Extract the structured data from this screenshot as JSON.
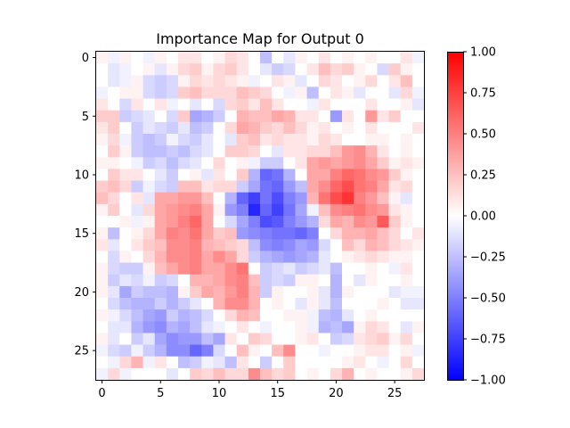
{
  "chart_data": {
    "type": "heatmap",
    "title": "Importance Map for Output 0",
    "xlabel": "",
    "ylabel": "",
    "grid": false,
    "colormap": "bwr",
    "color_min": "#0000ff",
    "color_mid": "#ffffff",
    "color_max": "#ff0000",
    "vmin": -1.0,
    "vmax": 1.0,
    "rows": 28,
    "cols": 28,
    "x_ticks": [
      0,
      5,
      10,
      15,
      20,
      25
    ],
    "y_ticks": [
      0,
      5,
      10,
      15,
      20,
      25
    ],
    "colorbar_ticks": [
      {
        "value": 1.0,
        "label": "1.00"
      },
      {
        "value": 0.75,
        "label": "0.75"
      },
      {
        "value": 0.5,
        "label": "0.50"
      },
      {
        "value": 0.25,
        "label": "0.25"
      },
      {
        "value": 0.0,
        "label": "0.00"
      },
      {
        "value": -0.25,
        "label": "−0.25"
      },
      {
        "value": -0.5,
        "label": "−0.50"
      },
      {
        "value": -0.75,
        "label": "−0.75"
      },
      {
        "value": -1.0,
        "label": "−1.00"
      }
    ],
    "values": [
      [
        0.05,
        -0.05,
        0.05,
        0.0,
        -0.05,
        0.05,
        0.0,
        0.1,
        0.1,
        0.0,
        0.05,
        0.15,
        0.1,
        0.0,
        -0.25,
        0.0,
        -0.1,
        0.05,
        0.0,
        0.1,
        0.0,
        0.05,
        0.0,
        0.05,
        0.0,
        0.0,
        0.1,
        -0.05
      ],
      [
        0.0,
        -0.1,
        -0.05,
        0.0,
        0.05,
        -0.1,
        0.05,
        0.15,
        0.2,
        0.05,
        0.15,
        0.2,
        0.1,
        0.0,
        -0.1,
        -0.2,
        -0.15,
        0.0,
        0.1,
        0.25,
        0.15,
        0.2,
        0.05,
        0.0,
        -0.15,
        0.2,
        0.05,
        0.0
      ],
      [
        0.0,
        -0.1,
        -0.05,
        0.05,
        -0.15,
        -0.2,
        -0.15,
        0.05,
        0.15,
        0.1,
        0.15,
        0.1,
        0.05,
        -0.05,
        0.0,
        0.1,
        0.05,
        -0.1,
        0.0,
        0.15,
        0.1,
        0.0,
        0.05,
        0.15,
        0.0,
        0.1,
        0.25,
        0.0
      ],
      [
        -0.05,
        0.0,
        0.05,
        0.05,
        -0.15,
        -0.2,
        -0.15,
        0.2,
        0.25,
        0.15,
        0.15,
        0.15,
        0.25,
        0.2,
        0.15,
        0.0,
        -0.05,
        0.05,
        -0.25,
        0.0,
        0.1,
        0.05,
        -0.1,
        0.0,
        0.0,
        -0.1,
        0.15,
        -0.05
      ],
      [
        0.1,
        0.0,
        -0.15,
        0.1,
        0.0,
        0.1,
        -0.05,
        0.0,
        -0.1,
        0.0,
        -0.15,
        0.15,
        0.2,
        0.1,
        0.25,
        0.1,
        0.0,
        0.0,
        -0.05,
        0.1,
        0.0,
        0.0,
        0.0,
        0.1,
        0.0,
        0.0,
        0.05,
        -0.1
      ],
      [
        0.2,
        0.2,
        -0.2,
        -0.15,
        -0.1,
        0.0,
        -0.15,
        0.2,
        -0.35,
        -0.3,
        -0.2,
        0.0,
        0.3,
        0.25,
        0.25,
        0.35,
        0.3,
        0.1,
        0.1,
        0.0,
        -0.4,
        0.1,
        0.0,
        0.4,
        0.1,
        0.2,
        0.0,
        0.0
      ],
      [
        0.1,
        0.2,
        0.0,
        -0.2,
        -0.1,
        -0.15,
        -0.2,
        -0.1,
        -0.25,
        -0.2,
        0.0,
        0.15,
        0.35,
        0.3,
        0.2,
        0.15,
        0.25,
        0.15,
        0.05,
        0.1,
        0.0,
        0.05,
        0.0,
        0.1,
        0.0,
        0.0,
        0.0,
        0.1
      ],
      [
        0.05,
        0.15,
        -0.05,
        -0.2,
        -0.25,
        -0.2,
        -0.05,
        -0.15,
        -0.2,
        -0.1,
        0.0,
        -0.1,
        0.2,
        0.25,
        0.1,
        0.15,
        0.1,
        0.1,
        0.05,
        0.15,
        0.1,
        0.0,
        0.0,
        0.05,
        0.05,
        0.0,
        0.05,
        0.0
      ],
      [
        0.0,
        0.2,
        0.05,
        -0.2,
        -0.25,
        -0.25,
        -0.2,
        -0.25,
        -0.15,
        -0.1,
        0.0,
        0.2,
        0.2,
        0.15,
        0.0,
        -0.1,
        0.1,
        0.1,
        0.15,
        0.15,
        0.25,
        0.4,
        0.45,
        0.3,
        0.1,
        0.0,
        0.05,
        0.0
      ],
      [
        0.05,
        0.05,
        0.0,
        -0.05,
        -0.2,
        -0.15,
        -0.25,
        -0.15,
        -0.1,
        0.0,
        0.15,
        0.0,
        0.05,
        -0.05,
        -0.2,
        -0.2,
        0.0,
        0.1,
        0.35,
        0.4,
        0.35,
        0.4,
        0.45,
        0.35,
        0.2,
        0.05,
        0.1,
        0.05
      ],
      [
        0.0,
        0.2,
        0.1,
        0.1,
        0.0,
        -0.1,
        -0.2,
        0.0,
        0.05,
        -0.1,
        0.1,
        0.0,
        0.2,
        -0.3,
        -0.6,
        -0.55,
        -0.3,
        0.0,
        0.35,
        0.35,
        0.5,
        0.6,
        0.55,
        0.45,
        0.4,
        0.2,
        0.05,
        0.0
      ],
      [
        0.2,
        0.25,
        0.15,
        -0.2,
        -0.05,
        -0.15,
        -0.2,
        0.25,
        0.25,
        0.1,
        0.15,
        0.15,
        -0.2,
        -0.35,
        -0.55,
        -0.6,
        -0.4,
        -0.25,
        0.35,
        0.45,
        0.6,
        0.7,
        0.55,
        0.5,
        0.35,
        0.1,
        0.15,
        0.0
      ],
      [
        0.25,
        0.15,
        0.0,
        0.1,
        -0.1,
        0.35,
        0.35,
        0.4,
        0.4,
        0.25,
        0.0,
        -0.3,
        -0.6,
        -0.75,
        -0.55,
        -0.7,
        -0.5,
        -0.4,
        0.3,
        0.55,
        0.7,
        0.8,
        0.5,
        0.4,
        0.25,
        0.05,
        -0.1,
        0.0
      ],
      [
        0.05,
        0.2,
        0.0,
        -0.1,
        0.15,
        0.35,
        0.4,
        0.45,
        0.5,
        0.35,
        0.05,
        -0.4,
        -0.5,
        -0.85,
        -0.6,
        -0.75,
        -0.55,
        -0.35,
        -0.05,
        0.25,
        0.45,
        0.5,
        0.55,
        0.45,
        0.4,
        0.1,
        0.05,
        0.0
      ],
      [
        0.0,
        0.0,
        0.05,
        -0.05,
        0.05,
        0.35,
        0.4,
        0.5,
        0.6,
        0.35,
        0.0,
        -0.15,
        -0.35,
        -0.5,
        -0.7,
        -0.65,
        -0.5,
        -0.4,
        -0.3,
        0.15,
        0.35,
        0.3,
        0.45,
        0.4,
        0.65,
        0.2,
        0.05,
        0.0
      ],
      [
        0.05,
        -0.25,
        0.0,
        0.05,
        0.15,
        0.35,
        0.5,
        0.45,
        0.55,
        0.35,
        0.2,
        0.25,
        -0.4,
        -0.45,
        -0.5,
        -0.55,
        -0.55,
        -0.6,
        -0.5,
        0.0,
        0.15,
        0.3,
        0.3,
        0.35,
        0.25,
        0.15,
        0.0,
        0.1
      ],
      [
        0.1,
        -0.1,
        0.0,
        0.1,
        0.2,
        0.25,
        0.45,
        0.45,
        0.5,
        0.3,
        0.25,
        0.2,
        0.15,
        -0.25,
        -0.45,
        -0.5,
        -0.45,
        -0.35,
        -0.4,
        -0.15,
        0.0,
        0.25,
        0.15,
        0.3,
        0.25,
        0.15,
        0.1,
        0.05
      ],
      [
        0.0,
        -0.15,
        0.05,
        0.0,
        0.15,
        0.3,
        0.45,
        0.45,
        0.5,
        0.35,
        0.45,
        0.35,
        0.15,
        -0.2,
        -0.3,
        -0.35,
        -0.4,
        -0.35,
        -0.3,
        -0.1,
        0.0,
        0.05,
        0.1,
        0.15,
        0.1,
        0.05,
        0.05,
        0.0
      ],
      [
        0.05,
        -0.15,
        -0.2,
        -0.2,
        0.05,
        0.25,
        0.35,
        0.45,
        0.5,
        0.35,
        0.35,
        0.45,
        0.55,
        0.0,
        -0.2,
        -0.15,
        -0.1,
        -0.2,
        -0.15,
        -0.1,
        -0.25,
        0.0,
        0.0,
        0.05,
        0.0,
        -0.05,
        0.1,
        0.0
      ],
      [
        0.05,
        -0.2,
        -0.1,
        -0.15,
        -0.05,
        -0.2,
        -0.15,
        0.0,
        0.3,
        0.3,
        0.35,
        0.45,
        0.5,
        0.25,
        -0.2,
        -0.15,
        -0.2,
        0.05,
        0.05,
        0.0,
        -0.3,
        0.0,
        -0.1,
        0.05,
        0.0,
        0.0,
        0.05,
        0.0
      ],
      [
        0.05,
        -0.1,
        -0.35,
        -0.2,
        -0.25,
        -0.25,
        -0.3,
        0.05,
        0.2,
        0.35,
        0.3,
        0.4,
        0.5,
        0.3,
        -0.2,
        0.05,
        0.0,
        0.0,
        0.05,
        -0.1,
        -0.3,
        0.05,
        0.0,
        0.0,
        0.0,
        -0.1,
        -0.05,
        -0.05
      ],
      [
        0.0,
        -0.15,
        -0.25,
        -0.3,
        -0.3,
        -0.2,
        -0.3,
        -0.2,
        -0.1,
        0.0,
        0.3,
        0.45,
        0.45,
        0.3,
        0.0,
        0.05,
        0.0,
        -0.1,
        0.05,
        -0.1,
        -0.25,
        0.0,
        0.0,
        0.0,
        0.05,
        0.0,
        -0.1,
        -0.1
      ],
      [
        0.05,
        -0.05,
        -0.15,
        -0.25,
        -0.35,
        -0.4,
        -0.2,
        -0.3,
        -0.25,
        -0.15,
        0.0,
        0.15,
        0.3,
        0.25,
        0.0,
        0.0,
        0.05,
        0.05,
        -0.05,
        -0.25,
        -0.3,
        -0.1,
        0.0,
        0.05,
        0.0,
        0.0,
        0.0,
        0.0
      ],
      [
        0.0,
        -0.1,
        -0.1,
        -0.3,
        -0.4,
        -0.45,
        -0.3,
        -0.35,
        -0.25,
        -0.1,
        -0.05,
        0.0,
        0.1,
        0.0,
        -0.05,
        0.0,
        0.0,
        0.05,
        -0.05,
        -0.3,
        -0.25,
        -0.35,
        0.05,
        0.15,
        0.1,
        0.0,
        -0.1,
        0.05
      ],
      [
        0.05,
        -0.1,
        0.0,
        -0.2,
        -0.1,
        -0.35,
        -0.45,
        -0.4,
        -0.4,
        -0.25,
        -0.35,
        0.1,
        0.0,
        0.2,
        0.15,
        0.0,
        0.0,
        0.05,
        0.1,
        0.0,
        -0.2,
        -0.15,
        0.1,
        0.15,
        0.2,
        0.05,
        0.15,
        0.0
      ],
      [
        -0.05,
        -0.15,
        -0.2,
        -0.05,
        -0.2,
        -0.3,
        -0.45,
        -0.45,
        -0.6,
        -0.5,
        -0.15,
        0.0,
        0.25,
        0.05,
        0.0,
        0.25,
        0.45,
        0.0,
        0.0,
        -0.05,
        0.0,
        0.0,
        0.05,
        0.1,
        0.1,
        0.0,
        0.05,
        -0.05
      ],
      [
        0.0,
        -0.05,
        0.15,
        0.3,
        -0.05,
        0.1,
        0.0,
        -0.25,
        -0.2,
        -0.05,
        -0.1,
        -0.25,
        0.1,
        0.0,
        -0.2,
        0.0,
        0.2,
        0.0,
        0.0,
        0.0,
        0.0,
        0.05,
        0.1,
        0.0,
        -0.05,
        0.0,
        0.15,
        0.0
      ],
      [
        -0.05,
        0.15,
        -0.05,
        0.0,
        0.0,
        0.0,
        -0.1,
        0.0,
        0.2,
        0.15,
        0.25,
        0.15,
        0.15,
        0.45,
        0.25,
        0.15,
        0.2,
        0.0,
        0.05,
        0.0,
        0.15,
        0.3,
        0.0,
        0.05,
        0.0,
        0.0,
        0.05,
        0.15
      ]
    ]
  }
}
